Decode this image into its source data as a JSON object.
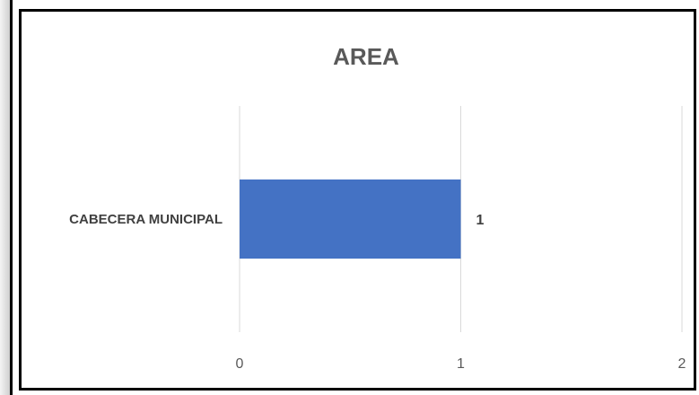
{
  "chart_data": {
    "type": "bar",
    "orientation": "horizontal",
    "title": "AREA",
    "categories": [
      "CABECERA MUNICIPAL"
    ],
    "values": [
      1
    ],
    "data_labels": [
      "1"
    ],
    "xlim": [
      0,
      2
    ],
    "x_ticks": [
      "0",
      "1",
      "2"
    ],
    "xlabel": "",
    "ylabel": "",
    "grid": true,
    "legend": false,
    "bar_color": "#4472C4",
    "grid_color": "#d9d9d9"
  }
}
